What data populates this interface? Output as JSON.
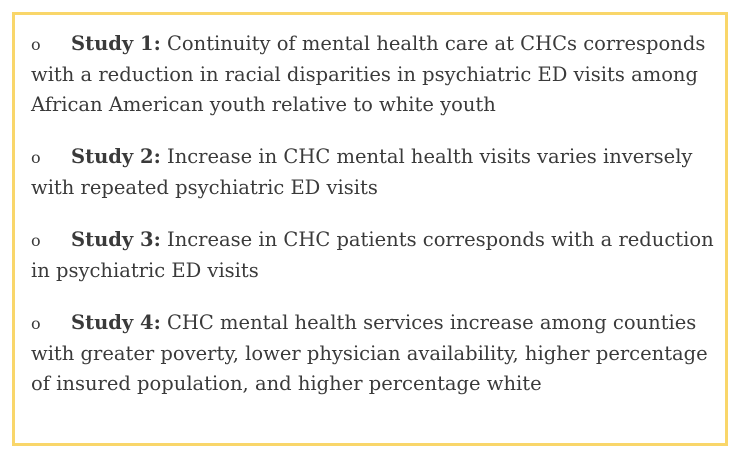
{
  "bullet": "o",
  "items": [
    {
      "label": "Study 1:",
      "text": " Continuity of mental health care at CHCs corresponds with a reduction in racial disparities in psychiatric ED visits among African American youth relative to white youth"
    },
    {
      "label": "Study 2:",
      "text": " Increase in CHC mental health visits varies inversely with repeated psychiatric ED visits"
    },
    {
      "label": "Study 3:",
      "text": " Increase in CHC patients corresponds with a reduction in psychiatric ED visits"
    },
    {
      "label": "Study 4:",
      "text": " CHC mental health services increase among counties with greater poverty, lower physician availability, higher percentage of insured population, and higher percentage white"
    }
  ]
}
